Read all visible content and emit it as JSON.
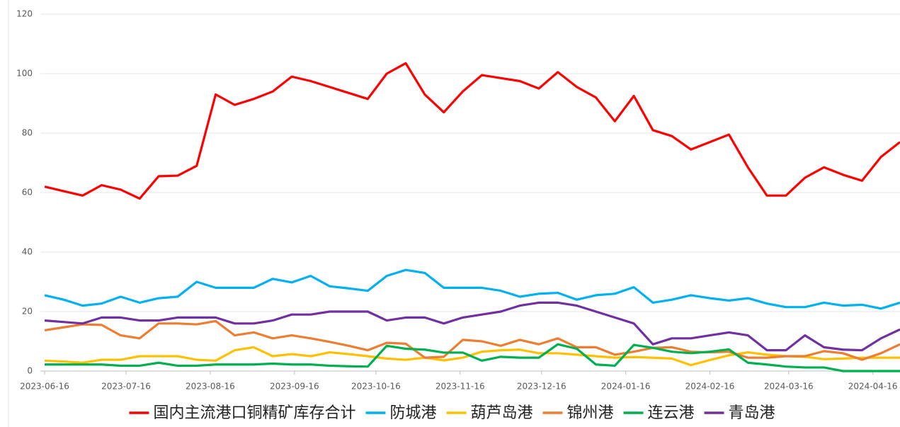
{
  "chart_data": {
    "type": "line",
    "x": [
      "2023-06-16",
      "2023-06-23",
      "2023-06-30",
      "2023-07-07",
      "2023-07-14",
      "2023-07-21",
      "2023-07-28",
      "2023-08-04",
      "2023-08-11",
      "2023-08-18",
      "2023-08-25",
      "2023-09-01",
      "2023-09-08",
      "2023-09-15",
      "2023-09-22",
      "2023-09-29",
      "2023-10-06",
      "2023-10-13",
      "2023-10-20",
      "2023-10-27",
      "2023-11-03",
      "2023-11-10",
      "2023-11-17",
      "2023-11-24",
      "2023-12-01",
      "2023-12-08",
      "2023-12-15",
      "2023-12-22",
      "2023-12-29",
      "2024-01-05",
      "2024-01-12",
      "2024-01-19",
      "2024-01-26",
      "2024-02-02",
      "2024-02-09",
      "2024-02-16",
      "2024-02-23",
      "2024-03-01",
      "2024-03-08",
      "2024-03-15",
      "2024-03-22",
      "2024-03-29",
      "2024-04-05",
      "2024-04-12",
      "2024-04-19",
      "2024-04-26"
    ],
    "xlim": [
      "2023-06-16",
      "2024-04-26"
    ],
    "xticks": [
      "2023-06-16",
      "2023-07-16",
      "2023-08-16",
      "2023-09-16",
      "2023-10-16",
      "2023-11-16",
      "2023-12-16",
      "2024-01-16",
      "2024-02-16",
      "2024-03-16",
      "2024-04-16"
    ],
    "ylim": [
      0,
      120
    ],
    "yticks": [
      0,
      20,
      40,
      60,
      80,
      100,
      120
    ],
    "grid": true,
    "legend": "bottom",
    "series": [
      {
        "name": "国内主流港口铜精矿库存合计",
        "color": "#ff0000",
        "values": [
          62,
          60.5,
          59,
          62.5,
          61,
          58,
          65.5,
          65.7,
          69,
          93,
          89.5,
          91.5,
          94,
          99,
          97.5,
          95.5,
          93.5,
          91.5,
          100,
          103.5,
          93,
          87,
          94,
          99.5,
          98.5,
          97.5,
          95,
          100.5,
          95.5,
          92,
          84,
          92.5,
          81,
          79,
          74.5,
          77,
          79.5,
          68.5,
          59,
          59,
          65,
          68.5,
          66,
          64,
          72,
          77
        ]
      },
      {
        "name": "防城港",
        "color": "#00b0f0",
        "values": [
          25.5,
          24,
          22,
          22.7,
          25,
          23,
          24.5,
          25,
          30,
          28,
          28,
          28,
          31,
          29.8,
          32,
          28.5,
          27.8,
          27,
          32,
          34,
          33,
          28,
          28,
          28,
          27,
          25,
          26,
          26.3,
          24,
          25.5,
          26,
          28.2,
          23,
          24,
          25.5,
          24.5,
          23.7,
          24.5,
          22.7,
          21.5,
          21.5,
          23,
          22,
          22.3,
          21,
          23
        ]
      },
      {
        "name": "葫芦岛港",
        "color": "#ffc000",
        "values": [
          3.5,
          3.2,
          2.8,
          3.8,
          3.8,
          5,
          5,
          5,
          3.8,
          3.5,
          7,
          8,
          5,
          5.7,
          5,
          6.3,
          5.7,
          5,
          4.2,
          3.8,
          4.5,
          3.6,
          4.5,
          6.5,
          7,
          7.2,
          6,
          6,
          5.5,
          5,
          4.5,
          4.7,
          4.5,
          4.2,
          2,
          3.7,
          5.3,
          6.3,
          5.5,
          5,
          4.8,
          4,
          4.2,
          4.5,
          4.5,
          4.5
        ]
      },
      {
        "name": "锦州港",
        "color": "#ed7d31",
        "values": [
          13.7,
          14.7,
          15.7,
          15.5,
          12,
          11,
          16,
          16,
          15.7,
          16.8,
          12,
          13,
          11,
          12,
          11,
          9.8,
          8.5,
          7,
          9.5,
          9.2,
          4.5,
          4.8,
          10.5,
          10,
          8.5,
          10.5,
          9,
          11,
          8,
          8,
          5.5,
          6.5,
          7.8,
          8,
          6.5,
          6.3,
          6.5,
          4.5,
          4.5,
          5,
          5,
          6.7,
          6,
          3.8,
          6,
          9
        ]
      },
      {
        "name": "连云港",
        "color": "#00b050",
        "values": [
          2.2,
          2.2,
          2.2,
          2.2,
          1.8,
          1.8,
          2.8,
          1.8,
          1.8,
          2.2,
          2.2,
          2.2,
          2.5,
          2.2,
          2.2,
          1.8,
          1.6,
          1.5,
          8.5,
          7.5,
          7.2,
          6.2,
          6.2,
          3.5,
          4.8,
          4.5,
          4.5,
          9,
          7.5,
          2.2,
          1.8,
          8.8,
          7.8,
          6.5,
          6,
          6.5,
          7.3,
          2.8,
          2.2,
          1.5,
          1.2,
          1.2,
          0,
          0,
          0,
          0
        ]
      },
      {
        "name": "青岛港",
        "color": "#7030a0",
        "values": [
          17,
          16.5,
          16,
          18,
          18,
          17,
          17,
          18,
          18,
          18,
          16,
          16,
          17,
          19,
          19,
          20,
          20,
          20,
          17,
          18,
          18,
          16,
          18,
          19,
          20,
          22,
          23,
          23,
          22,
          20,
          18,
          16,
          9,
          11,
          11,
          12,
          13,
          12,
          7,
          7,
          12,
          8,
          7.2,
          7,
          11,
          14
        ]
      }
    ]
  }
}
